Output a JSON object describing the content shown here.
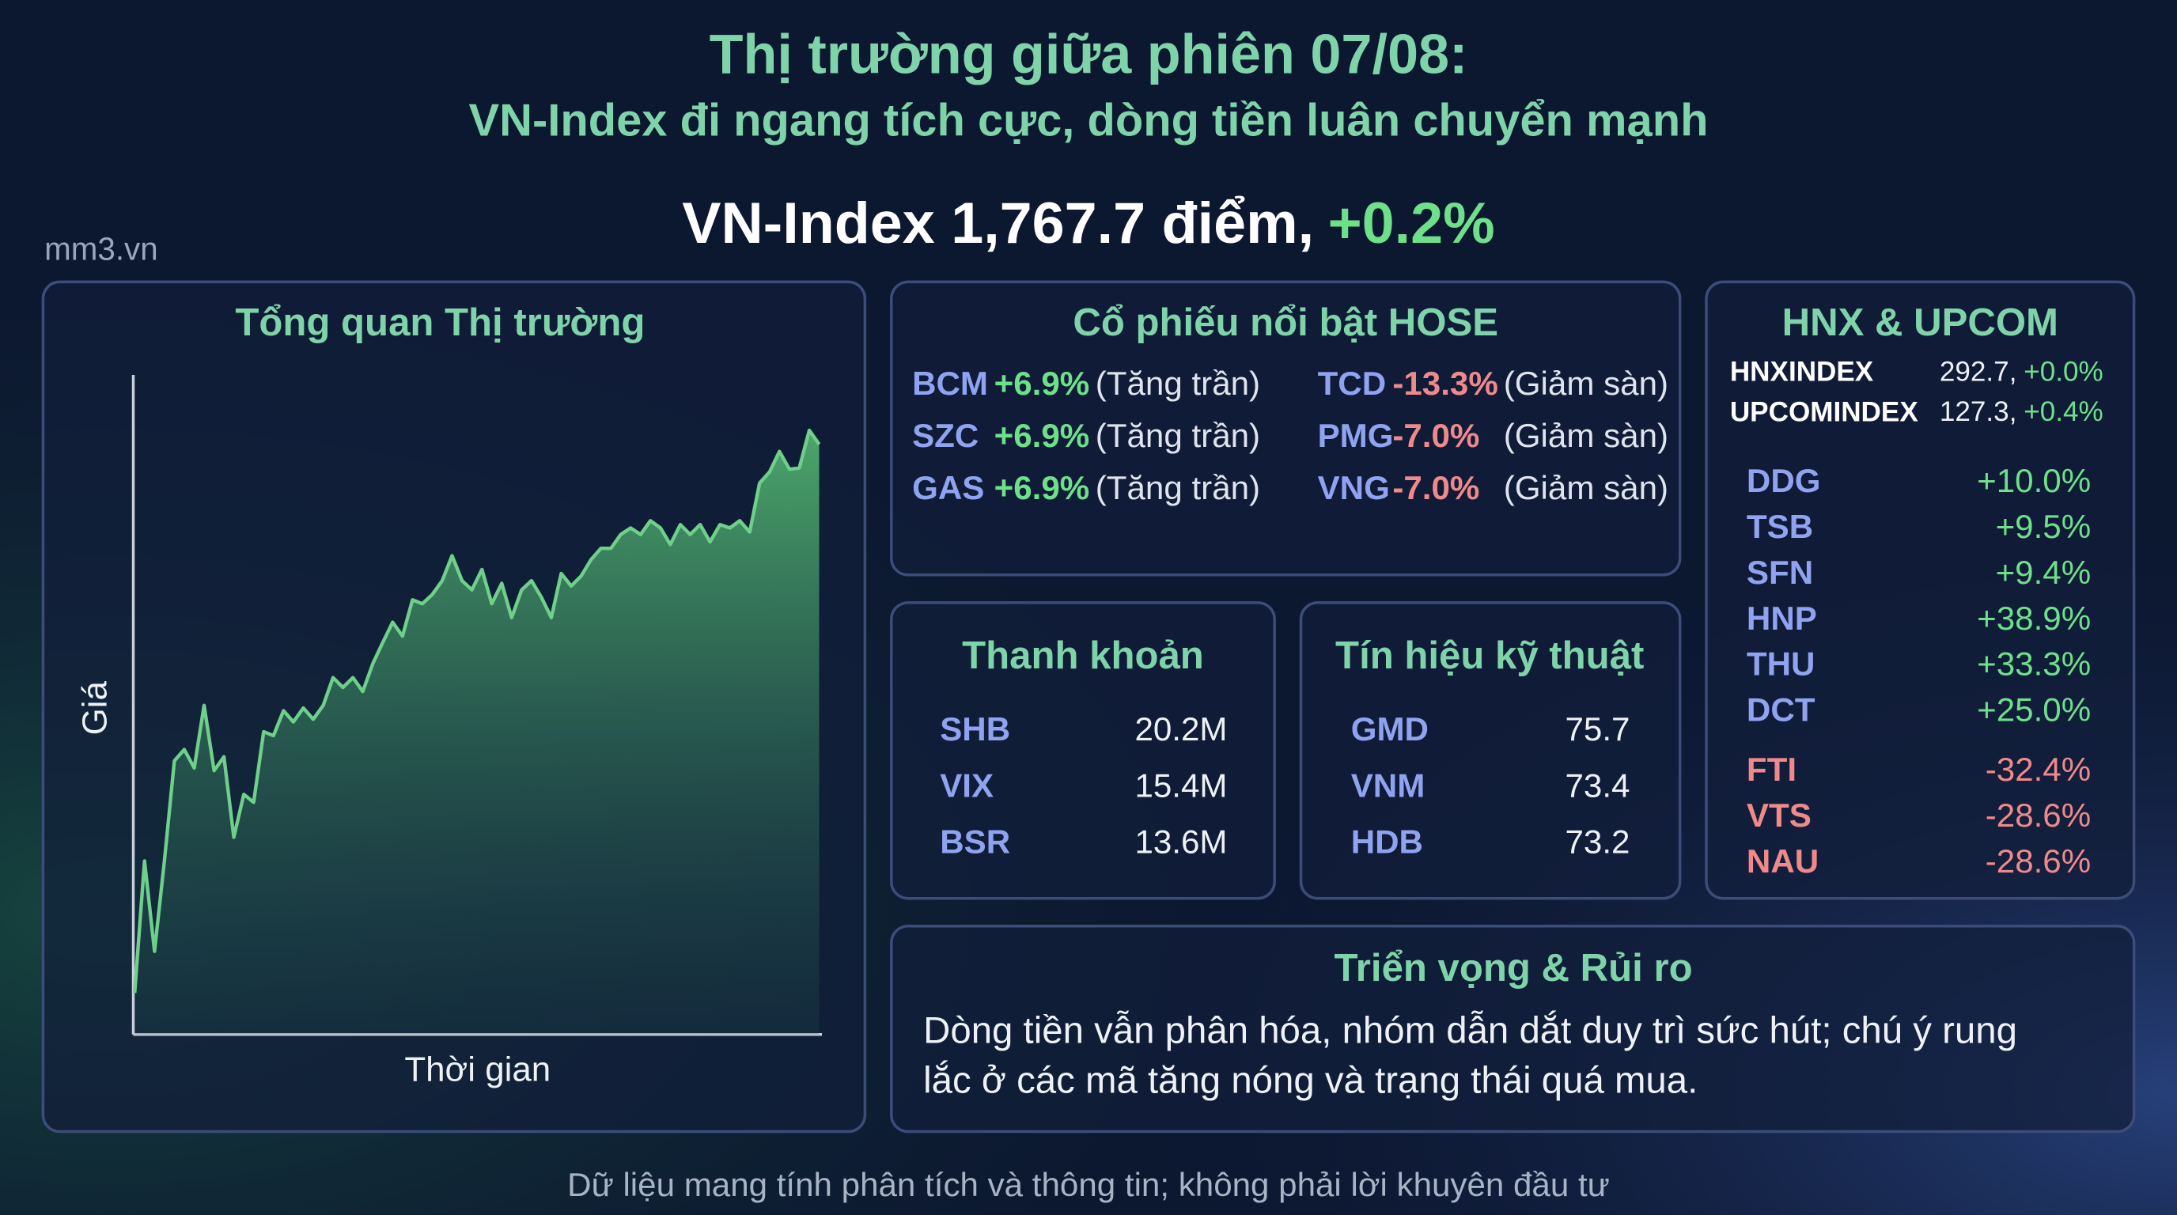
{
  "header": {
    "title": "Thị trường giữa phiên 07/08:",
    "subtitle": "VN-Index đi ngang tích cực, dòng tiền luân chuyển mạnh",
    "headline": "VN-Index 1,767.7 điểm,",
    "headline_change": "+0.2%",
    "watermark": "mm3.vn"
  },
  "chart_data": {
    "type": "area",
    "title": "Tổng quan Thị trường",
    "xlabel": "Thời gian",
    "ylabel": "Giá",
    "color": "#6fd08a",
    "ylim": [
      0,
      100
    ],
    "values": [
      6.3,
      26.3,
      12.6,
      26.3,
      41.5,
      43.2,
      40.4,
      49.9,
      40.0,
      42.1,
      29.9,
      36.4,
      35.2,
      45.9,
      45.3,
      49.1,
      47.4,
      49.5,
      47.8,
      49.9,
      54.1,
      52.6,
      54.1,
      52.0,
      56.2,
      59.4,
      62.5,
      60.4,
      65.9,
      65.3,
      66.7,
      68.8,
      72.6,
      68.8,
      67.4,
      70.5,
      65.3,
      68.4,
      63.2,
      67.4,
      68.8,
      66.3,
      63.2,
      69.9,
      68.0,
      69.5,
      72.0,
      73.7,
      73.7,
      75.8,
      76.8,
      75.8,
      77.9,
      76.8,
      74.3,
      77.3,
      75.8,
      77.3,
      74.7,
      77.3,
      76.8,
      77.9,
      76.2,
      83.6,
      85.3,
      88.4,
      85.7,
      85.9,
      91.6,
      89.5
    ]
  },
  "hose": {
    "title": "Cổ phiếu nổi bật HOSE",
    "gainers": [
      {
        "ticker": "BCM",
        "change": "+6.9%",
        "note": "(Tăng trần)"
      },
      {
        "ticker": "SZC",
        "change": "+6.9%",
        "note": "(Tăng trần)"
      },
      {
        "ticker": "GAS",
        "change": "+6.9%",
        "note": "(Tăng trần)"
      }
    ],
    "losers": [
      {
        "ticker": "TCD",
        "change": "-13.3%",
        "note": "(Giảm sàn)"
      },
      {
        "ticker": "PMG",
        "change": "-7.0%",
        "note": "(Giảm sàn)"
      },
      {
        "ticker": "VNG",
        "change": "-7.0%",
        "note": "(Giảm sàn)"
      }
    ]
  },
  "liquidity": {
    "title": "Thanh khoản",
    "rows": [
      [
        "SHB",
        "20.2M"
      ],
      [
        "VIX",
        "15.4M"
      ],
      [
        "BSR",
        "13.6M"
      ]
    ]
  },
  "technical": {
    "title": "Tín hiệu kỹ thuật",
    "rows": [
      [
        "GMD",
        "75.7"
      ],
      [
        "VNM",
        "73.4"
      ],
      [
        "HDB",
        "73.2"
      ]
    ]
  },
  "hnx": {
    "title": "HNX & UPCOM",
    "indices": [
      {
        "name": "HNXINDEX",
        "value": "292.7,",
        "change": "+0.0%"
      },
      {
        "name": "UPCOMINDEX",
        "value": "127.3,",
        "change": "+0.4%"
      }
    ],
    "gainers": [
      [
        "DDG",
        "+10.0%"
      ],
      [
        "TSB",
        "+9.5%"
      ],
      [
        "SFN",
        "+9.4%"
      ],
      [
        "HNP",
        "+38.9%"
      ],
      [
        "THU",
        "+33.3%"
      ],
      [
        "DCT",
        "+25.0%"
      ]
    ],
    "losers": [
      [
        "FTI",
        "-32.4%"
      ],
      [
        "VTS",
        "-28.6%"
      ],
      [
        "NAU",
        "-28.6%"
      ]
    ]
  },
  "outlook": {
    "title": "Triển vọng & Rủi ro",
    "lines": [
      "Dòng tiền vẫn phân hóa, nhóm dẫn dắt duy trì sức hút; chú ý rung",
      "lắc ở các mã tăng nóng và trạng thái quá mua."
    ]
  },
  "footer": "Dữ liệu mang tính phân tích và thông tin; không phải lời khuyên đầu tư"
}
